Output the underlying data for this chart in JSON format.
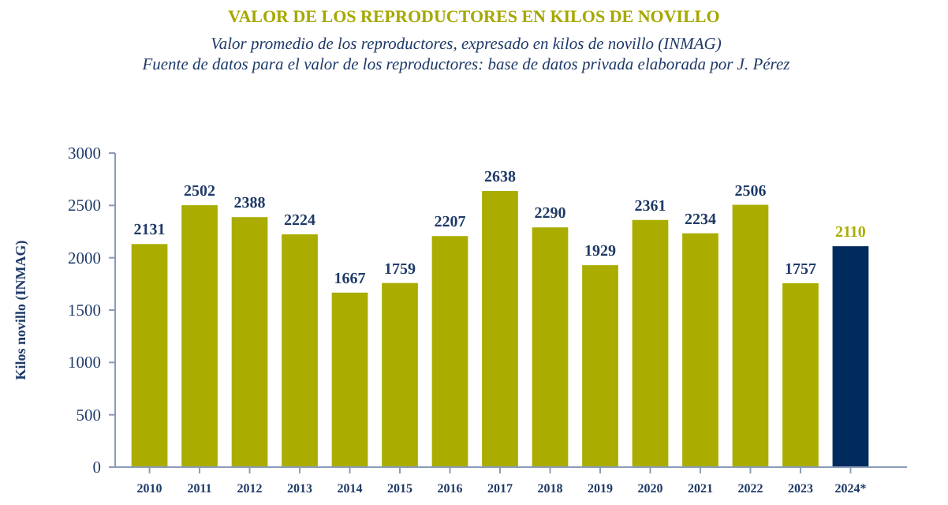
{
  "chart_data": {
    "type": "bar",
    "title": "VALOR DE LOS REPRODUCTORES EN KILOS DE NOVILLO",
    "subtitle": "Valor promedio de los reproductores, expresado en kilos de novillo (INMAG)\nFuente de datos para el valor de los reproductores: base de datos privada elaborada por J. Pérez",
    "ylabel": "Kilos novillo (INMAG)",
    "categories": [
      "2010",
      "2011",
      "2012",
      "2013",
      "2014",
      "2015",
      "2016",
      "2017",
      "2018",
      "2019",
      "2020",
      "2021",
      "2022",
      "2023",
      "2024*"
    ],
    "values": [
      2131,
      2502,
      2388,
      2224,
      1667,
      1759,
      2207,
      2638,
      2290,
      1929,
      2361,
      2234,
      2506,
      1757,
      2110
    ],
    "colors": [
      "#aaad00",
      "#aaad00",
      "#aaad00",
      "#aaad00",
      "#aaad00",
      "#aaad00",
      "#aaad00",
      "#aaad00",
      "#aaad00",
      "#aaad00",
      "#aaad00",
      "#aaad00",
      "#aaad00",
      "#aaad00",
      "#002b5c"
    ],
    "ylim": [
      0,
      3000
    ],
    "yticks": [
      0,
      500,
      1000,
      1500,
      2000,
      2500,
      3000
    ],
    "grid": false,
    "data_labels": true
  }
}
